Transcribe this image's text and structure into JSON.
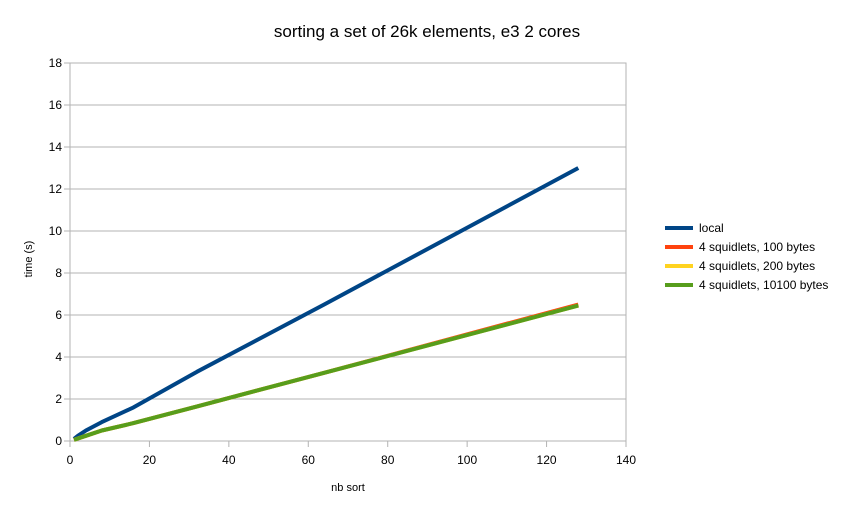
{
  "chart_data": {
    "type": "line",
    "title": "sorting a set of 26k elements, e3 2 cores",
    "xlabel": "nb sort",
    "ylabel": "time (s)",
    "xlim": [
      0,
      140
    ],
    "ylim": [
      0,
      18
    ],
    "x_ticks": [
      "0",
      "20",
      "40",
      "60",
      "80",
      "100",
      "120",
      "140"
    ],
    "y_ticks": [
      "0",
      "2",
      "4",
      "6",
      "8",
      "10",
      "12",
      "14",
      "16",
      "18"
    ],
    "grid": "horizontal",
    "legend_position": "right",
    "series": [
      {
        "name": "local",
        "color": "#004586",
        "points": [
          [
            1,
            0.1
          ],
          [
            2,
            0.25
          ],
          [
            4,
            0.5
          ],
          [
            8,
            0.9
          ],
          [
            16,
            1.6
          ],
          [
            32,
            3.3
          ],
          [
            64,
            6.5
          ],
          [
            128,
            13.0
          ]
        ]
      },
      {
        "name": "4 squidlets, 100 bytes",
        "color": "#ff420e",
        "points": [
          [
            1,
            0.05
          ],
          [
            2,
            0.12
          ],
          [
            4,
            0.25
          ],
          [
            8,
            0.5
          ],
          [
            16,
            0.85
          ],
          [
            32,
            1.65
          ],
          [
            64,
            3.25
          ],
          [
            128,
            6.5
          ]
        ]
      },
      {
        "name": "4 squidlets, 200 bytes",
        "color": "#ffd320",
        "points": [
          [
            1,
            0.05
          ],
          [
            2,
            0.12
          ],
          [
            4,
            0.25
          ],
          [
            8,
            0.5
          ],
          [
            16,
            0.85
          ],
          [
            32,
            1.65
          ],
          [
            64,
            3.25
          ],
          [
            128,
            6.45
          ]
        ]
      },
      {
        "name": "4 squidlets, 10100 bytes",
        "color": "#579d1c",
        "points": [
          [
            1,
            0.05
          ],
          [
            2,
            0.12
          ],
          [
            4,
            0.25
          ],
          [
            8,
            0.5
          ],
          [
            16,
            0.85
          ],
          [
            32,
            1.65
          ],
          [
            64,
            3.25
          ],
          [
            128,
            6.45
          ]
        ]
      }
    ]
  }
}
